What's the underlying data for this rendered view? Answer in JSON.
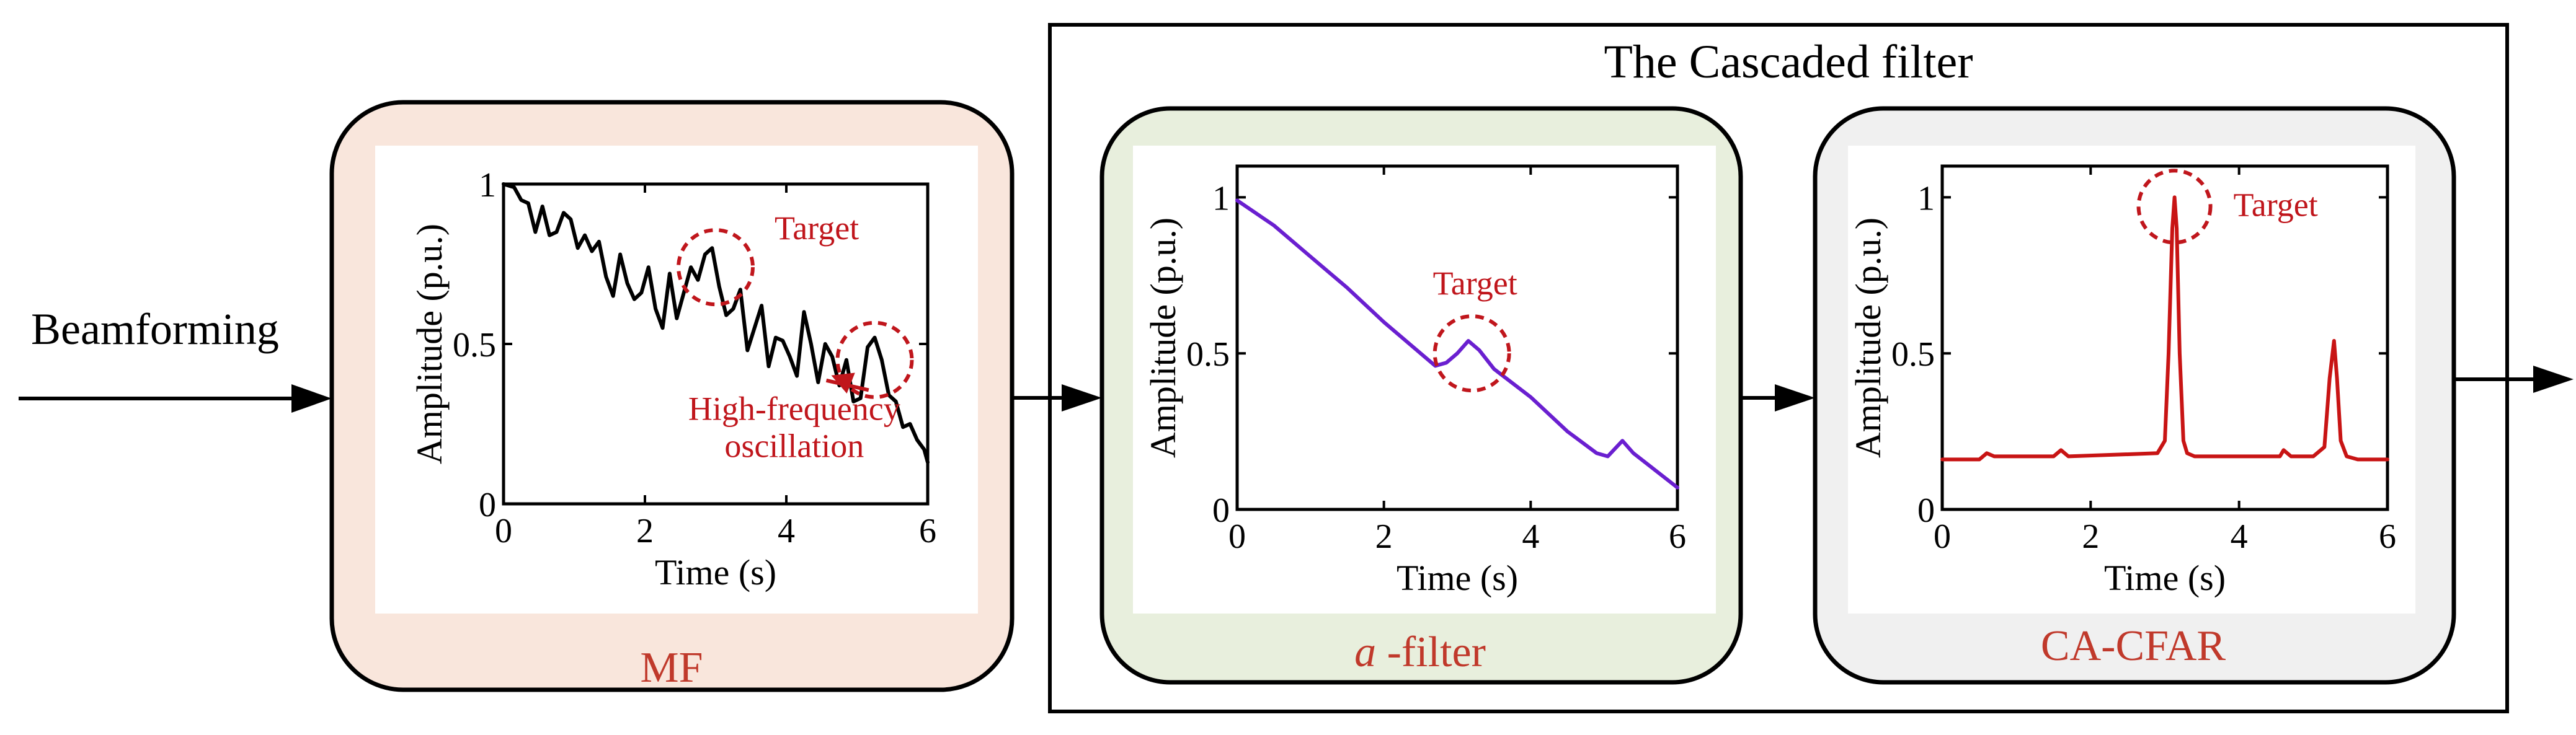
{
  "input_label": "Beamforming",
  "cascade": {
    "title": "The Cascaded filter"
  },
  "blocks": [
    {
      "label": "MF",
      "fill": "#f9e6dc"
    },
    {
      "label_italic": "a",
      "label": " -filter",
      "fill": "#e8efdd"
    },
    {
      "label": "CA-CFAR",
      "fill": "#f0f0f0"
    }
  ],
  "colors": {
    "annotation": "#c0161c",
    "label_red": "#c0392b",
    "mf_trace": "#000000",
    "alpha_trace": "#6a1fd0",
    "cfar_trace": "#c81414"
  },
  "chart_data": [
    {
      "type": "line",
      "xlabel": "Time (s)",
      "ylabel": "Amplitude (p.u.)",
      "xlim": [
        0,
        6
      ],
      "ylim": [
        0,
        1
      ],
      "xticks": [
        0,
        2,
        4,
        6
      ],
      "yticks": [
        0,
        0.5,
        1
      ],
      "ytick_labels": [
        "0",
        "0.5",
        "1"
      ],
      "series": [
        {
          "x": [
            0,
            0.15,
            0.25,
            0.35,
            0.45,
            0.55,
            0.65,
            0.75,
            0.85,
            0.95,
            1.05,
            1.15,
            1.25,
            1.35,
            1.45,
            1.55,
            1.65,
            1.75,
            1.85,
            1.95,
            2.05,
            2.15,
            2.25,
            2.35,
            2.45,
            2.55,
            2.65,
            2.75,
            2.85,
            2.95,
            3.05,
            3.15,
            3.25,
            3.35,
            3.45,
            3.55,
            3.65,
            3.75,
            3.85,
            3.95,
            4.05,
            4.15,
            4.25,
            4.35,
            4.45,
            4.55,
            4.65,
            4.75,
            4.85,
            4.95,
            5.05,
            5.15,
            5.25,
            5.35,
            5.45,
            5.55,
            5.65,
            5.75,
            5.85,
            5.95,
            6.0
          ],
          "y": [
            1.0,
            0.99,
            0.95,
            0.94,
            0.85,
            0.93,
            0.84,
            0.85,
            0.91,
            0.89,
            0.8,
            0.84,
            0.79,
            0.82,
            0.71,
            0.65,
            0.78,
            0.69,
            0.64,
            0.66,
            0.74,
            0.61,
            0.55,
            0.72,
            0.58,
            0.66,
            0.74,
            0.7,
            0.78,
            0.8,
            0.68,
            0.59,
            0.61,
            0.67,
            0.48,
            0.55,
            0.62,
            0.43,
            0.52,
            0.51,
            0.46,
            0.4,
            0.6,
            0.5,
            0.38,
            0.5,
            0.46,
            0.37,
            0.45,
            0.32,
            0.33,
            0.49,
            0.52,
            0.45,
            0.34,
            0.32,
            0.24,
            0.25,
            0.2,
            0.17,
            0.13
          ]
        }
      ],
      "annotations": [
        {
          "text": "Target",
          "x": 3.0,
          "y": 0.74
        },
        {
          "text": "",
          "x": 5.25,
          "y": 0.45
        },
        {
          "text": "High-frequency oscillation",
          "x": 4.2,
          "y": 0.22
        }
      ]
    },
    {
      "type": "line",
      "xlabel": "Time (s)",
      "ylabel": "Amplitude (p.u.)",
      "xlim": [
        0,
        6
      ],
      "ylim": [
        0,
        1.1
      ],
      "xticks": [
        0,
        2,
        4,
        6
      ],
      "yticks": [
        0,
        0.5,
        1
      ],
      "ytick_labels": [
        "0",
        "0.5",
        "1"
      ],
      "series": [
        {
          "x": [
            0,
            0.5,
            1.0,
            1.5,
            2.0,
            2.5,
            2.7,
            2.85,
            3.0,
            3.15,
            3.3,
            3.5,
            4.0,
            4.5,
            4.9,
            5.05,
            5.25,
            5.4,
            6.0
          ],
          "y": [
            0.99,
            0.91,
            0.81,
            0.71,
            0.6,
            0.5,
            0.46,
            0.47,
            0.5,
            0.54,
            0.51,
            0.45,
            0.36,
            0.25,
            0.18,
            0.17,
            0.22,
            0.18,
            0.07
          ]
        }
      ],
      "annotations": [
        {
          "text": "Target",
          "x": 3.2,
          "y": 0.5
        }
      ]
    },
    {
      "type": "line",
      "xlabel": "Time (s)",
      "ylabel": "Amplitude (p.u.)",
      "xlim": [
        0,
        6
      ],
      "ylim": [
        0,
        1.1
      ],
      "xticks": [
        0,
        2,
        4,
        6
      ],
      "yticks": [
        0,
        0.5,
        1
      ],
      "ytick_labels": [
        "0",
        "0.5",
        "1"
      ],
      "series": [
        {
          "x": [
            0,
            0.5,
            0.6,
            0.7,
            1.5,
            1.6,
            1.7,
            2.9,
            3.0,
            3.05,
            3.1,
            3.13,
            3.16,
            3.2,
            3.25,
            3.3,
            3.4,
            4.55,
            4.6,
            4.7,
            5.0,
            5.15,
            5.22,
            5.28,
            5.32,
            5.37,
            5.45,
            5.6,
            6.0
          ],
          "y": [
            0.16,
            0.16,
            0.18,
            0.17,
            0.17,
            0.19,
            0.17,
            0.18,
            0.22,
            0.5,
            0.9,
            1.0,
            0.9,
            0.5,
            0.22,
            0.18,
            0.17,
            0.17,
            0.19,
            0.17,
            0.17,
            0.2,
            0.42,
            0.54,
            0.42,
            0.22,
            0.17,
            0.16,
            0.16
          ]
        }
      ],
      "annotations": [
        {
          "text": "Target",
          "x": 3.13,
          "y": 1.0
        }
      ]
    }
  ]
}
